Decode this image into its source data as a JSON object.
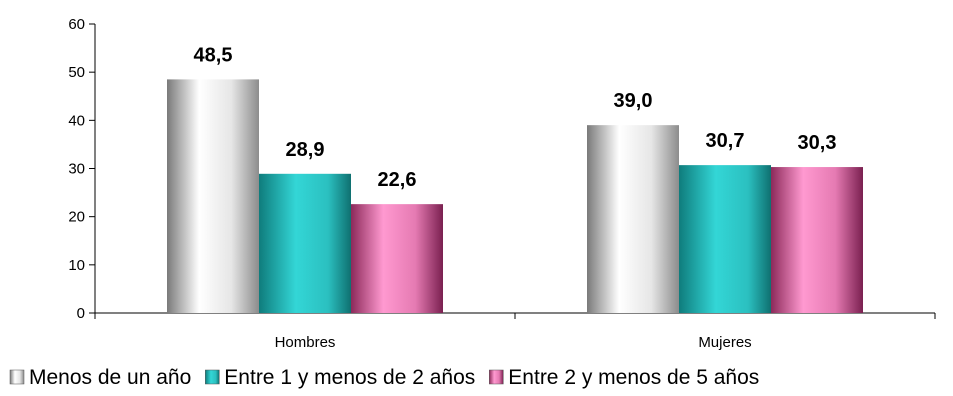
{
  "chart_data": {
    "type": "bar",
    "categories": [
      "Hombres",
      "Mujeres"
    ],
    "series": [
      {
        "name": "Menos de un año",
        "values": [
          48.5,
          39.0
        ],
        "labels": [
          "48,5",
          "39,0"
        ],
        "color": "#d9d9d9"
      },
      {
        "name": "Entre 1 y menos de 2 años",
        "values": [
          28.9,
          30.7
        ],
        "labels": [
          "28,9",
          "30,7"
        ],
        "color": "#2ec4c4"
      },
      {
        "name": "Entre 2 y menos de 5 años",
        "values": [
          22.6,
          30.3
        ],
        "labels": [
          "22,6",
          "30,3"
        ],
        "color": "#e86aa8"
      }
    ],
    "yticks": [
      "0",
      "10",
      "20",
      "30",
      "40",
      "50",
      "60"
    ],
    "ylim": [
      0,
      60
    ],
    "grid": false,
    "legend_position": "bottom",
    "title": "",
    "xlabel": "",
    "ylabel": ""
  }
}
